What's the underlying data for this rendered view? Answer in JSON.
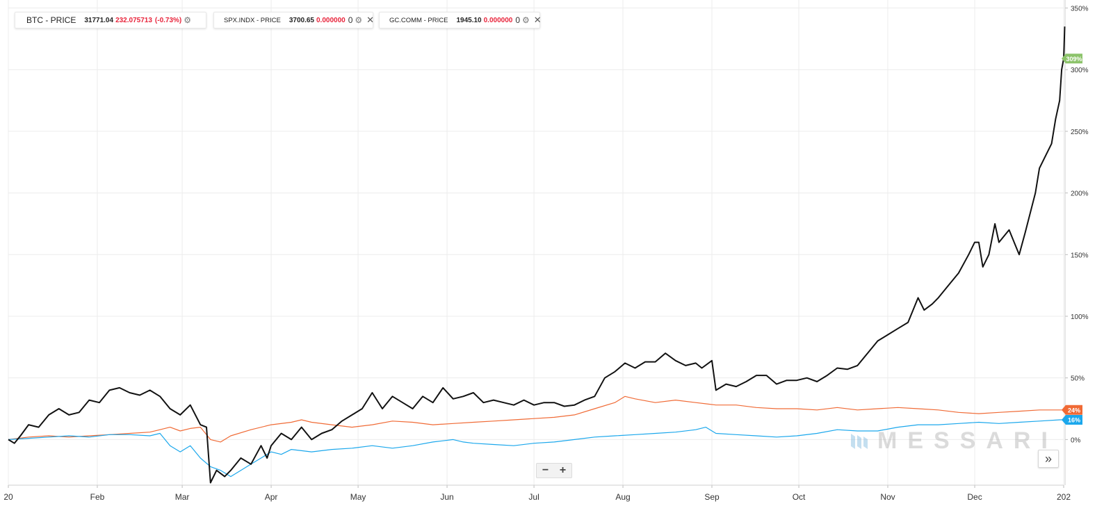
{
  "legend": [
    {
      "name": "BTC - PRICE",
      "price": "31771.04",
      "change": "232.075713",
      "change_pct": "(-0.73%)",
      "color": "#ffffff"
    },
    {
      "name": "SPX.INDX - PRICE",
      "price": "3700.65",
      "change": "0.000000",
      "extra": "0",
      "color": "#1aa7ec"
    },
    {
      "name": "GC.COMM - PRICE",
      "price": "1945.10",
      "change": "0.000000",
      "extra": "0",
      "color": "#f06a35"
    }
  ],
  "watermark": "MESSARI",
  "zoom": {
    "minus": "−",
    "plus": "+"
  },
  "scroll_label": "»",
  "chart_data": {
    "type": "line",
    "title": "",
    "xlabel": "",
    "ylabel": "",
    "x_ticks": [
      {
        "label": "20",
        "week": 0
      },
      {
        "label": "Feb",
        "week": 4.4
      },
      {
        "label": "Mar",
        "week": 8.6
      },
      {
        "label": "Apr",
        "week": 13.0
      },
      {
        "label": "May",
        "week": 17.3
      },
      {
        "label": "Jun",
        "week": 21.7
      },
      {
        "label": "Jul",
        "week": 26.0
      },
      {
        "label": "Aug",
        "week": 30.4
      },
      {
        "label": "Sep",
        "week": 34.8
      },
      {
        "label": "Oct",
        "week": 39.1
      },
      {
        "label": "Nov",
        "week": 43.5
      },
      {
        "label": "Dec",
        "week": 47.8
      },
      {
        "label": "202",
        "week": 52.2
      }
    ],
    "xlim": [
      0,
      52.2
    ],
    "y_ticks": [
      {
        "label": "0%",
        "value": 0
      },
      {
        "label": "50%",
        "value": 50
      },
      {
        "label": "100%",
        "value": 100
      },
      {
        "label": "150%",
        "value": 150
      },
      {
        "label": "200%",
        "value": 200
      },
      {
        "label": "250%",
        "value": 250
      },
      {
        "label": "300%",
        "value": 300
      },
      {
        "label": "350%",
        "value": 350
      }
    ],
    "ylim": [
      -37,
      352
    ],
    "grid": true,
    "series": [
      {
        "name": "BTC - PRICE",
        "color": "#111111",
        "end_label": "309%",
        "end_label_color": "#8cc36a",
        "points": [
          [
            0,
            0
          ],
          [
            0.3,
            -3
          ],
          [
            0.6,
            3
          ],
          [
            1,
            12
          ],
          [
            1.5,
            10
          ],
          [
            2,
            20
          ],
          [
            2.5,
            25
          ],
          [
            3,
            20
          ],
          [
            3.5,
            22
          ],
          [
            4,
            32
          ],
          [
            4.5,
            30
          ],
          [
            5,
            40
          ],
          [
            5.5,
            42
          ],
          [
            6,
            38
          ],
          [
            6.5,
            36
          ],
          [
            7,
            40
          ],
          [
            7.5,
            35
          ],
          [
            8,
            25
          ],
          [
            8.5,
            20
          ],
          [
            9,
            28
          ],
          [
            9.5,
            12
          ],
          [
            9.8,
            10
          ],
          [
            10,
            -35
          ],
          [
            10.3,
            -25
          ],
          [
            10.7,
            -30
          ],
          [
            11,
            -25
          ],
          [
            11.5,
            -15
          ],
          [
            12,
            -20
          ],
          [
            12.5,
            -5
          ],
          [
            12.8,
            -15
          ],
          [
            13,
            -5
          ],
          [
            13.5,
            5
          ],
          [
            14,
            0
          ],
          [
            14.5,
            10
          ],
          [
            15,
            0
          ],
          [
            15.5,
            5
          ],
          [
            16,
            8
          ],
          [
            16.5,
            15
          ],
          [
            17,
            20
          ],
          [
            17.5,
            25
          ],
          [
            18,
            38
          ],
          [
            18.5,
            25
          ],
          [
            19,
            35
          ],
          [
            19.5,
            30
          ],
          [
            20,
            25
          ],
          [
            20.5,
            35
          ],
          [
            21,
            30
          ],
          [
            21.5,
            42
          ],
          [
            22,
            33
          ],
          [
            22.5,
            35
          ],
          [
            23,
            38
          ],
          [
            23.5,
            30
          ],
          [
            24,
            32
          ],
          [
            24.5,
            30
          ],
          [
            25,
            28
          ],
          [
            25.5,
            32
          ],
          [
            26,
            28
          ],
          [
            26.5,
            30
          ],
          [
            27,
            30
          ],
          [
            27.5,
            27
          ],
          [
            28,
            28
          ],
          [
            28.5,
            32
          ],
          [
            29,
            35
          ],
          [
            29.5,
            50
          ],
          [
            30,
            55
          ],
          [
            30.5,
            62
          ],
          [
            31,
            58
          ],
          [
            31.5,
            63
          ],
          [
            32,
            63
          ],
          [
            32.5,
            70
          ],
          [
            33,
            64
          ],
          [
            33.5,
            60
          ],
          [
            34,
            62
          ],
          [
            34.3,
            58
          ],
          [
            34.8,
            64
          ],
          [
            35,
            40
          ],
          [
            35.5,
            45
          ],
          [
            36,
            43
          ],
          [
            36.5,
            47
          ],
          [
            37,
            52
          ],
          [
            37.5,
            52
          ],
          [
            38,
            45
          ],
          [
            38.5,
            48
          ],
          [
            39,
            48
          ],
          [
            39.5,
            50
          ],
          [
            40,
            47
          ],
          [
            40.5,
            52
          ],
          [
            41,
            58
          ],
          [
            41.5,
            57
          ],
          [
            42,
            60
          ],
          [
            42.5,
            70
          ],
          [
            43,
            80
          ],
          [
            43.5,
            85
          ],
          [
            44,
            90
          ],
          [
            44.5,
            95
          ],
          [
            45,
            115
          ],
          [
            45.3,
            105
          ],
          [
            45.7,
            110
          ],
          [
            46,
            115
          ],
          [
            46.5,
            125
          ],
          [
            47,
            135
          ],
          [
            47.5,
            150
          ],
          [
            47.8,
            160
          ],
          [
            48,
            160
          ],
          [
            48.2,
            140
          ],
          [
            48.5,
            150
          ],
          [
            48.8,
            175
          ],
          [
            49,
            160
          ],
          [
            49.5,
            170
          ],
          [
            49.8,
            158
          ],
          [
            50,
            150
          ],
          [
            50.3,
            168
          ],
          [
            50.8,
            200
          ],
          [
            51,
            220
          ],
          [
            51.3,
            230
          ],
          [
            51.6,
            240
          ],
          [
            51.8,
            260
          ],
          [
            52,
            275
          ],
          [
            52.1,
            300
          ],
          [
            52.2,
            309
          ],
          [
            52.25,
            335
          ]
        ]
      },
      {
        "name": "SPX.INDX - PRICE",
        "color": "#1aa7ec",
        "end_label": "16%",
        "end_label_color": "#1aa7ec",
        "points": [
          [
            0,
            0
          ],
          [
            1,
            1
          ],
          [
            2,
            2
          ],
          [
            3,
            3
          ],
          [
            4,
            2
          ],
          [
            5,
            4
          ],
          [
            6,
            4
          ],
          [
            7,
            3
          ],
          [
            7.5,
            5
          ],
          [
            8,
            -5
          ],
          [
            8.5,
            -10
          ],
          [
            9,
            -5
          ],
          [
            9.5,
            -15
          ],
          [
            10,
            -22
          ],
          [
            10.5,
            -25
          ],
          [
            11,
            -30
          ],
          [
            11.5,
            -25
          ],
          [
            12,
            -20
          ],
          [
            12.5,
            -15
          ],
          [
            13,
            -10
          ],
          [
            13.5,
            -12
          ],
          [
            14,
            -8
          ],
          [
            15,
            -10
          ],
          [
            16,
            -8
          ],
          [
            17,
            -7
          ],
          [
            18,
            -5
          ],
          [
            19,
            -7
          ],
          [
            20,
            -5
          ],
          [
            21,
            -2
          ],
          [
            22,
            0
          ],
          [
            22.5,
            -2
          ],
          [
            23,
            -3
          ],
          [
            24,
            -4
          ],
          [
            25,
            -5
          ],
          [
            26,
            -3
          ],
          [
            27,
            -2
          ],
          [
            28,
            0
          ],
          [
            29,
            2
          ],
          [
            30,
            3
          ],
          [
            31,
            4
          ],
          [
            32,
            5
          ],
          [
            33,
            6
          ],
          [
            34,
            8
          ],
          [
            34.5,
            10
          ],
          [
            35,
            5
          ],
          [
            36,
            4
          ],
          [
            37,
            3
          ],
          [
            38,
            2
          ],
          [
            39,
            3
          ],
          [
            40,
            5
          ],
          [
            41,
            8
          ],
          [
            42,
            7
          ],
          [
            43,
            7
          ],
          [
            44,
            10
          ],
          [
            45,
            12
          ],
          [
            46,
            12
          ],
          [
            47,
            13
          ],
          [
            48,
            14
          ],
          [
            49,
            13
          ],
          [
            50,
            14
          ],
          [
            51,
            15
          ],
          [
            52,
            16
          ],
          [
            52.2,
            16
          ]
        ]
      },
      {
        "name": "GC.COMM - PRICE",
        "color": "#f06a35",
        "end_label": "24%",
        "end_label_color": "#f06a35",
        "points": [
          [
            0,
            0
          ],
          [
            1,
            2
          ],
          [
            2,
            3
          ],
          [
            3,
            2
          ],
          [
            4,
            3
          ],
          [
            5,
            4
          ],
          [
            6,
            5
          ],
          [
            7,
            6
          ],
          [
            7.5,
            8
          ],
          [
            8,
            10
          ],
          [
            8.5,
            7
          ],
          [
            9,
            9
          ],
          [
            9.5,
            10
          ],
          [
            10,
            0
          ],
          [
            10.5,
            -2
          ],
          [
            11,
            3
          ],
          [
            12,
            8
          ],
          [
            13,
            12
          ],
          [
            14,
            14
          ],
          [
            14.5,
            16
          ],
          [
            15,
            14
          ],
          [
            16,
            12
          ],
          [
            17,
            10
          ],
          [
            18,
            12
          ],
          [
            19,
            15
          ],
          [
            20,
            14
          ],
          [
            21,
            12
          ],
          [
            22,
            13
          ],
          [
            23,
            14
          ],
          [
            24,
            15
          ],
          [
            25,
            16
          ],
          [
            26,
            17
          ],
          [
            27,
            18
          ],
          [
            28,
            20
          ],
          [
            29,
            25
          ],
          [
            30,
            30
          ],
          [
            30.5,
            35
          ],
          [
            31,
            33
          ],
          [
            32,
            30
          ],
          [
            33,
            32
          ],
          [
            34,
            30
          ],
          [
            35,
            28
          ],
          [
            36,
            28
          ],
          [
            37,
            26
          ],
          [
            38,
            25
          ],
          [
            39,
            25
          ],
          [
            40,
            24
          ],
          [
            41,
            26
          ],
          [
            42,
            24
          ],
          [
            43,
            25
          ],
          [
            44,
            26
          ],
          [
            45,
            25
          ],
          [
            46,
            24
          ],
          [
            47,
            22
          ],
          [
            48,
            21
          ],
          [
            49,
            22
          ],
          [
            50,
            23
          ],
          [
            51,
            24
          ],
          [
            52,
            24
          ],
          [
            52.2,
            24
          ]
        ]
      }
    ]
  }
}
